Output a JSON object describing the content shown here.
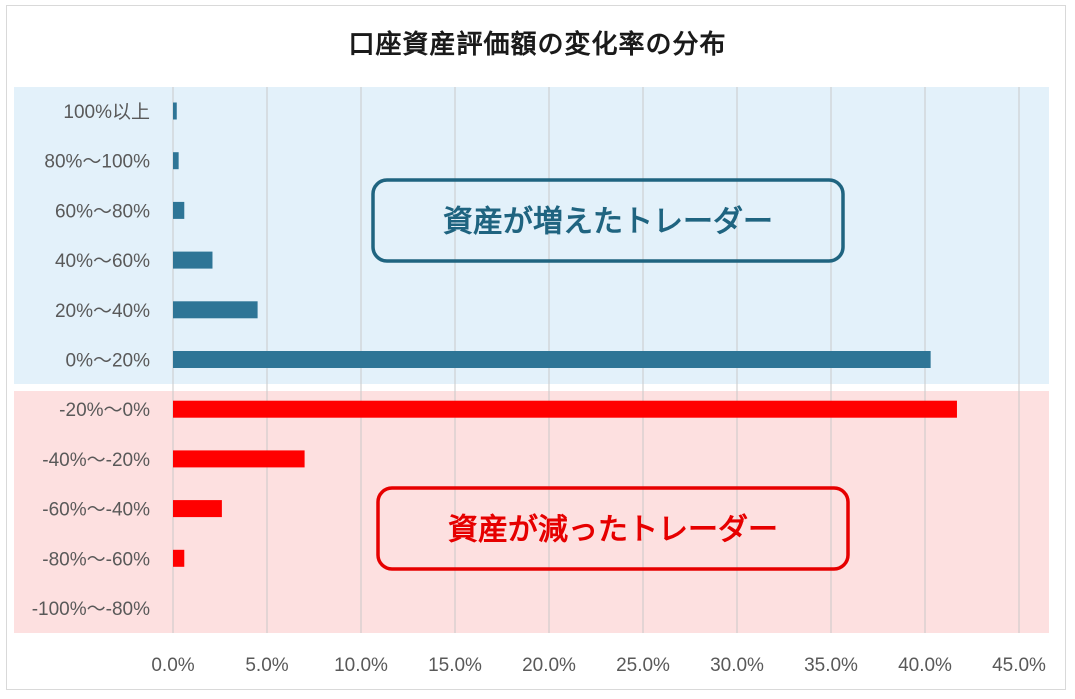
{
  "chart_data": {
    "type": "bar",
    "orientation": "horizontal",
    "title": "口座資産評価額の変化率の分布",
    "categories": [
      "100%以上",
      "80%〜100%",
      "60%〜80%",
      "40%〜60%",
      "20%〜40%",
      "0%〜20%",
      "-20%〜0%",
      "-40%〜-20%",
      "-60%〜-40%",
      "-80%〜-60%",
      "-100%〜-80%"
    ],
    "values": [
      0.2,
      0.3,
      0.6,
      2.1,
      4.5,
      40.3,
      41.7,
      7.0,
      2.6,
      0.6,
      0.0
    ],
    "xlim": [
      0,
      45
    ],
    "x_ticks": [
      "0.0%",
      "5.0%",
      "10.0%",
      "15.0%",
      "20.0%",
      "25.0%",
      "30.0%",
      "35.0%",
      "40.0%",
      "45.0%"
    ],
    "grid": true,
    "groups": [
      {
        "label": "資産が増えたトレーダー",
        "count": 6,
        "bar_color": "#2e7596",
        "bg_color": "#e3f1fa",
        "text_color": "#1f6480"
      },
      {
        "label": "資産が減ったトレーダー",
        "count": 5,
        "bar_color": "#ff0000",
        "bg_color": "#fde0e0",
        "text_color": "#e60000"
      }
    ]
  }
}
